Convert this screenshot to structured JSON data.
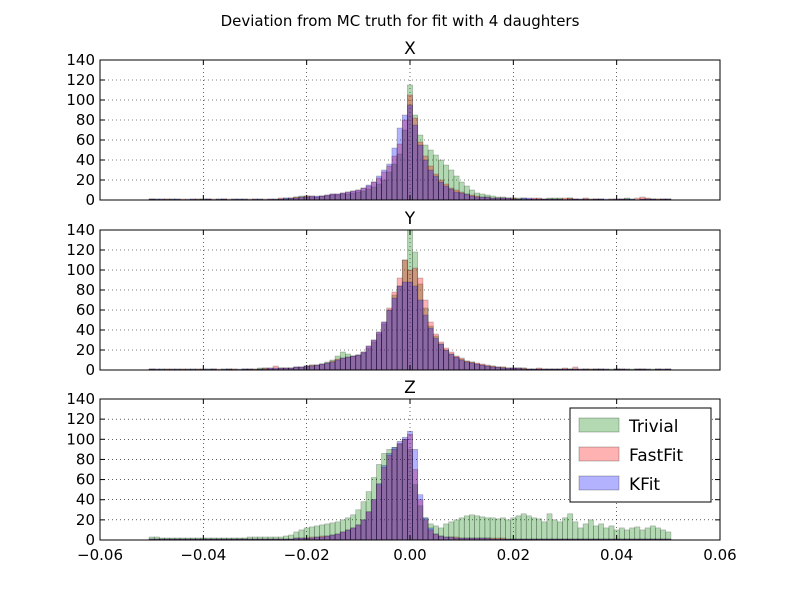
{
  "figure": {
    "suptitle": "Deviation from MC truth for fit with 4 daughters"
  },
  "chart_data": {
    "type": "bar",
    "layout": "three stacked histogram panels sharing the x axis",
    "bin_centers": [
      -0.05,
      -0.049,
      -0.048,
      -0.047,
      -0.046,
      -0.045,
      -0.044,
      -0.043,
      -0.042,
      -0.041,
      -0.04,
      -0.039,
      -0.038,
      -0.037,
      -0.036,
      -0.035,
      -0.034,
      -0.033,
      -0.032,
      -0.031,
      -0.03,
      -0.029,
      -0.028,
      -0.027,
      -0.026,
      -0.025,
      -0.024,
      -0.023,
      -0.022,
      -0.021,
      -0.02,
      -0.019,
      -0.018,
      -0.017,
      -0.016,
      -0.015,
      -0.014,
      -0.013,
      -0.012,
      -0.011,
      -0.01,
      -0.009,
      -0.008,
      -0.007,
      -0.006,
      -0.005,
      -0.004,
      -0.003,
      -0.002,
      -0.001,
      0.0,
      0.001,
      0.002,
      0.003,
      0.004,
      0.005,
      0.006,
      0.007,
      0.008,
      0.009,
      0.01,
      0.011,
      0.012,
      0.013,
      0.014,
      0.015,
      0.016,
      0.017,
      0.018,
      0.019,
      0.02,
      0.021,
      0.022,
      0.023,
      0.024,
      0.025,
      0.026,
      0.027,
      0.028,
      0.029,
      0.03,
      0.031,
      0.032,
      0.033,
      0.034,
      0.035,
      0.036,
      0.037,
      0.038,
      0.039,
      0.04,
      0.041,
      0.042,
      0.043,
      0.044,
      0.045,
      0.046,
      0.047,
      0.048,
      0.049,
      0.05
    ],
    "bin_width": 0.001,
    "xlim": [
      -0.06,
      0.06
    ],
    "ylim": [
      0,
      140
    ],
    "xticks": [
      "−0.06",
      "−0.04",
      "−0.02",
      "0.00",
      "0.02",
      "0.04",
      "0.06"
    ],
    "xtick_values": [
      -0.06,
      -0.04,
      -0.02,
      0.0,
      0.02,
      0.04,
      0.06
    ],
    "yticks": [
      "0",
      "20",
      "40",
      "60",
      "80",
      "100",
      "120",
      "140"
    ],
    "ytick_values": [
      0,
      20,
      40,
      60,
      80,
      100,
      120,
      140
    ],
    "grid": true,
    "legend": {
      "panel": 2,
      "placement": "upper right",
      "entries": [
        "Trivial",
        "FastFit",
        "KFit"
      ]
    },
    "series_colors": {
      "Trivial": "#008000",
      "FastFit": "#ff0000",
      "KFit": "#0000ff"
    },
    "series_alpha": 0.3,
    "panels": [
      {
        "title": "X",
        "series": [
          {
            "name": "Trivial",
            "values": [
              1,
              1,
              0,
              1,
              1,
              1,
              0,
              0,
              0,
              1,
              1,
              1,
              0,
              1,
              1,
              0,
              1,
              0,
              1,
              0,
              0,
              1,
              0,
              0,
              1,
              1,
              2,
              2,
              3,
              4,
              4,
              3,
              3,
              4,
              4,
              5,
              5,
              6,
              6,
              7,
              8,
              9,
              11,
              13,
              16,
              20,
              28,
              36,
              46,
              70,
              115,
              85,
              65,
              55,
              50,
              45,
              40,
              35,
              30,
              24,
              18,
              14,
              10,
              7,
              6,
              5,
              4,
              3,
              3,
              2,
              2,
              2,
              2,
              1,
              1,
              1,
              1,
              2,
              2,
              2,
              1,
              2,
              1,
              0,
              1,
              1,
              1,
              1,
              0,
              1,
              0,
              1,
              2,
              1,
              0,
              1,
              1,
              1,
              1,
              1,
              1
            ]
          },
          {
            "name": "FastFit",
            "values": [
              1,
              0,
              1,
              1,
              0,
              0,
              1,
              0,
              1,
              1,
              0,
              1,
              1,
              0,
              1,
              1,
              0,
              1,
              0,
              1,
              1,
              0,
              1,
              1,
              0,
              2,
              1,
              2,
              3,
              3,
              4,
              4,
              3,
              4,
              5,
              6,
              6,
              7,
              8,
              9,
              10,
              12,
              14,
              18,
              22,
              28,
              34,
              44,
              56,
              80,
              105,
              82,
              58,
              44,
              34,
              26,
              20,
              16,
              12,
              10,
              8,
              6,
              5,
              4,
              3,
              3,
              2,
              2,
              2,
              2,
              2,
              1,
              1,
              1,
              2,
              2,
              1,
              1,
              1,
              1,
              2,
              2,
              1,
              1,
              2,
              1,
              1,
              1,
              0,
              1,
              1,
              1,
              1,
              0,
              2,
              3,
              2,
              1,
              1,
              1,
              1
            ]
          },
          {
            "name": "KFit",
            "values": [
              1,
              1,
              1,
              0,
              1,
              1,
              0,
              1,
              1,
              0,
              1,
              1,
              0,
              1,
              1,
              0,
              1,
              1,
              1,
              0,
              1,
              1,
              0,
              1,
              1,
              1,
              2,
              2,
              2,
              3,
              3,
              4,
              4,
              4,
              5,
              6,
              6,
              7,
              8,
              9,
              10,
              12,
              15,
              18,
              24,
              30,
              36,
              52,
              72,
              85,
              95,
              75,
              55,
              40,
              30,
              24,
              18,
              14,
              11,
              8,
              7,
              6,
              4,
              3,
              3,
              3,
              2,
              2,
              2,
              2,
              1,
              1,
              2,
              2,
              1,
              1,
              1,
              1,
              1,
              1,
              0,
              1,
              1,
              1,
              1,
              0,
              1,
              1,
              1,
              0,
              1,
              1,
              1,
              1,
              0,
              1,
              1,
              1,
              0,
              1,
              1
            ]
          }
        ]
      },
      {
        "title": "Y",
        "series": [
          {
            "name": "Trivial",
            "values": [
              1,
              0,
              1,
              1,
              0,
              1,
              1,
              0,
              1,
              1,
              0,
              1,
              1,
              0,
              1,
              1,
              1,
              0,
              1,
              1,
              1,
              2,
              2,
              1,
              1,
              2,
              2,
              2,
              3,
              3,
              4,
              5,
              5,
              6,
              8,
              10,
              14,
              18,
              16,
              14,
              15,
              17,
              22,
              28,
              36,
              46,
              60,
              75,
              84,
              110,
              140,
              118,
              86,
              62,
              44,
              34,
              26,
              20,
              16,
              13,
              11,
              9,
              8,
              6,
              5,
              4,
              4,
              3,
              3,
              2,
              2,
              2,
              2,
              1,
              1,
              1,
              1,
              1,
              1,
              1,
              1,
              1,
              1,
              0,
              1,
              1,
              1,
              1,
              0,
              1,
              1,
              1,
              0,
              1,
              1,
              1,
              0,
              1,
              1,
              0,
              1
            ]
          },
          {
            "name": "FastFit",
            "values": [
              1,
              1,
              0,
              1,
              1,
              0,
              1,
              1,
              0,
              1,
              1,
              0,
              1,
              1,
              0,
              1,
              1,
              0,
              1,
              1,
              1,
              1,
              2,
              2,
              4,
              2,
              2,
              2,
              3,
              3,
              4,
              5,
              5,
              6,
              7,
              9,
              11,
              12,
              13,
              14,
              15,
              18,
              24,
              30,
              38,
              48,
              62,
              78,
              92,
              110,
              100,
              102,
              92,
              70,
              48,
              36,
              28,
              22,
              18,
              14,
              12,
              9,
              8,
              7,
              6,
              5,
              4,
              3,
              3,
              2,
              2,
              2,
              2,
              1,
              1,
              2,
              1,
              1,
              1,
              1,
              2,
              1,
              3,
              1,
              1,
              1,
              1,
              1,
              1,
              0,
              1,
              1,
              1,
              0,
              1,
              1,
              1,
              0,
              1,
              1,
              1
            ]
          },
          {
            "name": "KFit",
            "values": [
              1,
              1,
              1,
              0,
              1,
              1,
              0,
              1,
              1,
              0,
              1,
              1,
              1,
              0,
              1,
              1,
              0,
              1,
              1,
              1,
              0,
              1,
              1,
              2,
              2,
              2,
              2,
              2,
              3,
              3,
              4,
              4,
              5,
              6,
              7,
              8,
              10,
              12,
              13,
              14,
              15,
              18,
              24,
              30,
              38,
              48,
              60,
              72,
              84,
              88,
              88,
              84,
              70,
              55,
              42,
              32,
              26,
              20,
              16,
              13,
              10,
              8,
              7,
              6,
              5,
              4,
              3,
              3,
              2,
              2,
              2,
              2,
              1,
              1,
              1,
              1,
              1,
              1,
              1,
              1,
              1,
              1,
              1,
              1,
              1,
              0,
              1,
              1,
              1,
              0,
              1,
              1,
              1,
              0,
              1,
              1,
              1,
              0,
              1,
              1,
              1
            ]
          }
        ]
      },
      {
        "title": "Z",
        "series": [
          {
            "name": "Trivial",
            "values": [
              3,
              3,
              2,
              2,
              2,
              2,
              2,
              2,
              2,
              2,
              2,
              2,
              2,
              2,
              2,
              2,
              2,
              2,
              2,
              3,
              3,
              3,
              3,
              3,
              3,
              3,
              4,
              5,
              8,
              10,
              12,
              13,
              14,
              15,
              16,
              17,
              18,
              20,
              22,
              25,
              30,
              38,
              48,
              62,
              75,
              86,
              90,
              92,
              95,
              100,
              90,
              55,
              34,
              22,
              16,
              14,
              12,
              16,
              18,
              20,
              22,
              24,
              25,
              24,
              23,
              22,
              22,
              21,
              22,
              20,
              22,
              24,
              26,
              24,
              22,
              21,
              18,
              26,
              20,
              18,
              22,
              26,
              18,
              12,
              16,
              20,
              14,
              16,
              12,
              14,
              10,
              12,
              10,
              12,
              13,
              10,
              12,
              14,
              12,
              10,
              8
            ]
          },
          {
            "name": "FastFit",
            "values": [
              1,
              1,
              1,
              1,
              1,
              1,
              1,
              1,
              1,
              1,
              1,
              1,
              1,
              1,
              1,
              1,
              1,
              1,
              1,
              1,
              1,
              1,
              1,
              1,
              1,
              1,
              1,
              1,
              2,
              2,
              2,
              3,
              3,
              4,
              4,
              5,
              6,
              8,
              10,
              12,
              15,
              20,
              28,
              40,
              55,
              72,
              84,
              90,
              96,
              100,
              105,
              70,
              40,
              20,
              10,
              6,
              4,
              3,
              3,
              3,
              2,
              2,
              2,
              2,
              2,
              2,
              2,
              2,
              2,
              1,
              1,
              1,
              1,
              1,
              1,
              1,
              1,
              1,
              1,
              1,
              1,
              1,
              1,
              1,
              1,
              1,
              1,
              1,
              1,
              1,
              1,
              1,
              1,
              1,
              1,
              1,
              1,
              1,
              1,
              1,
              1
            ]
          },
          {
            "name": "KFit",
            "values": [
              1,
              1,
              1,
              1,
              1,
              1,
              1,
              1,
              1,
              1,
              1,
              1,
              1,
              1,
              1,
              1,
              1,
              1,
              1,
              1,
              1,
              1,
              1,
              1,
              1,
              1,
              1,
              1,
              2,
              2,
              2,
              2,
              3,
              3,
              4,
              5,
              6,
              8,
              10,
              12,
              15,
              20,
              28,
              40,
              56,
              74,
              86,
              92,
              98,
              102,
              108,
              90,
              45,
              22,
              12,
              6,
              4,
              3,
              3,
              2,
              2,
              2,
              2,
              2,
              2,
              2,
              1,
              1,
              1,
              1,
              1,
              1,
              1,
              1,
              1,
              1,
              1,
              1,
              1,
              1,
              1,
              1,
              1,
              1,
              1,
              1,
              1,
              1,
              1,
              1,
              1,
              1,
              1,
              1,
              1,
              1,
              1,
              1,
              1,
              1,
              1
            ]
          }
        ]
      }
    ]
  }
}
